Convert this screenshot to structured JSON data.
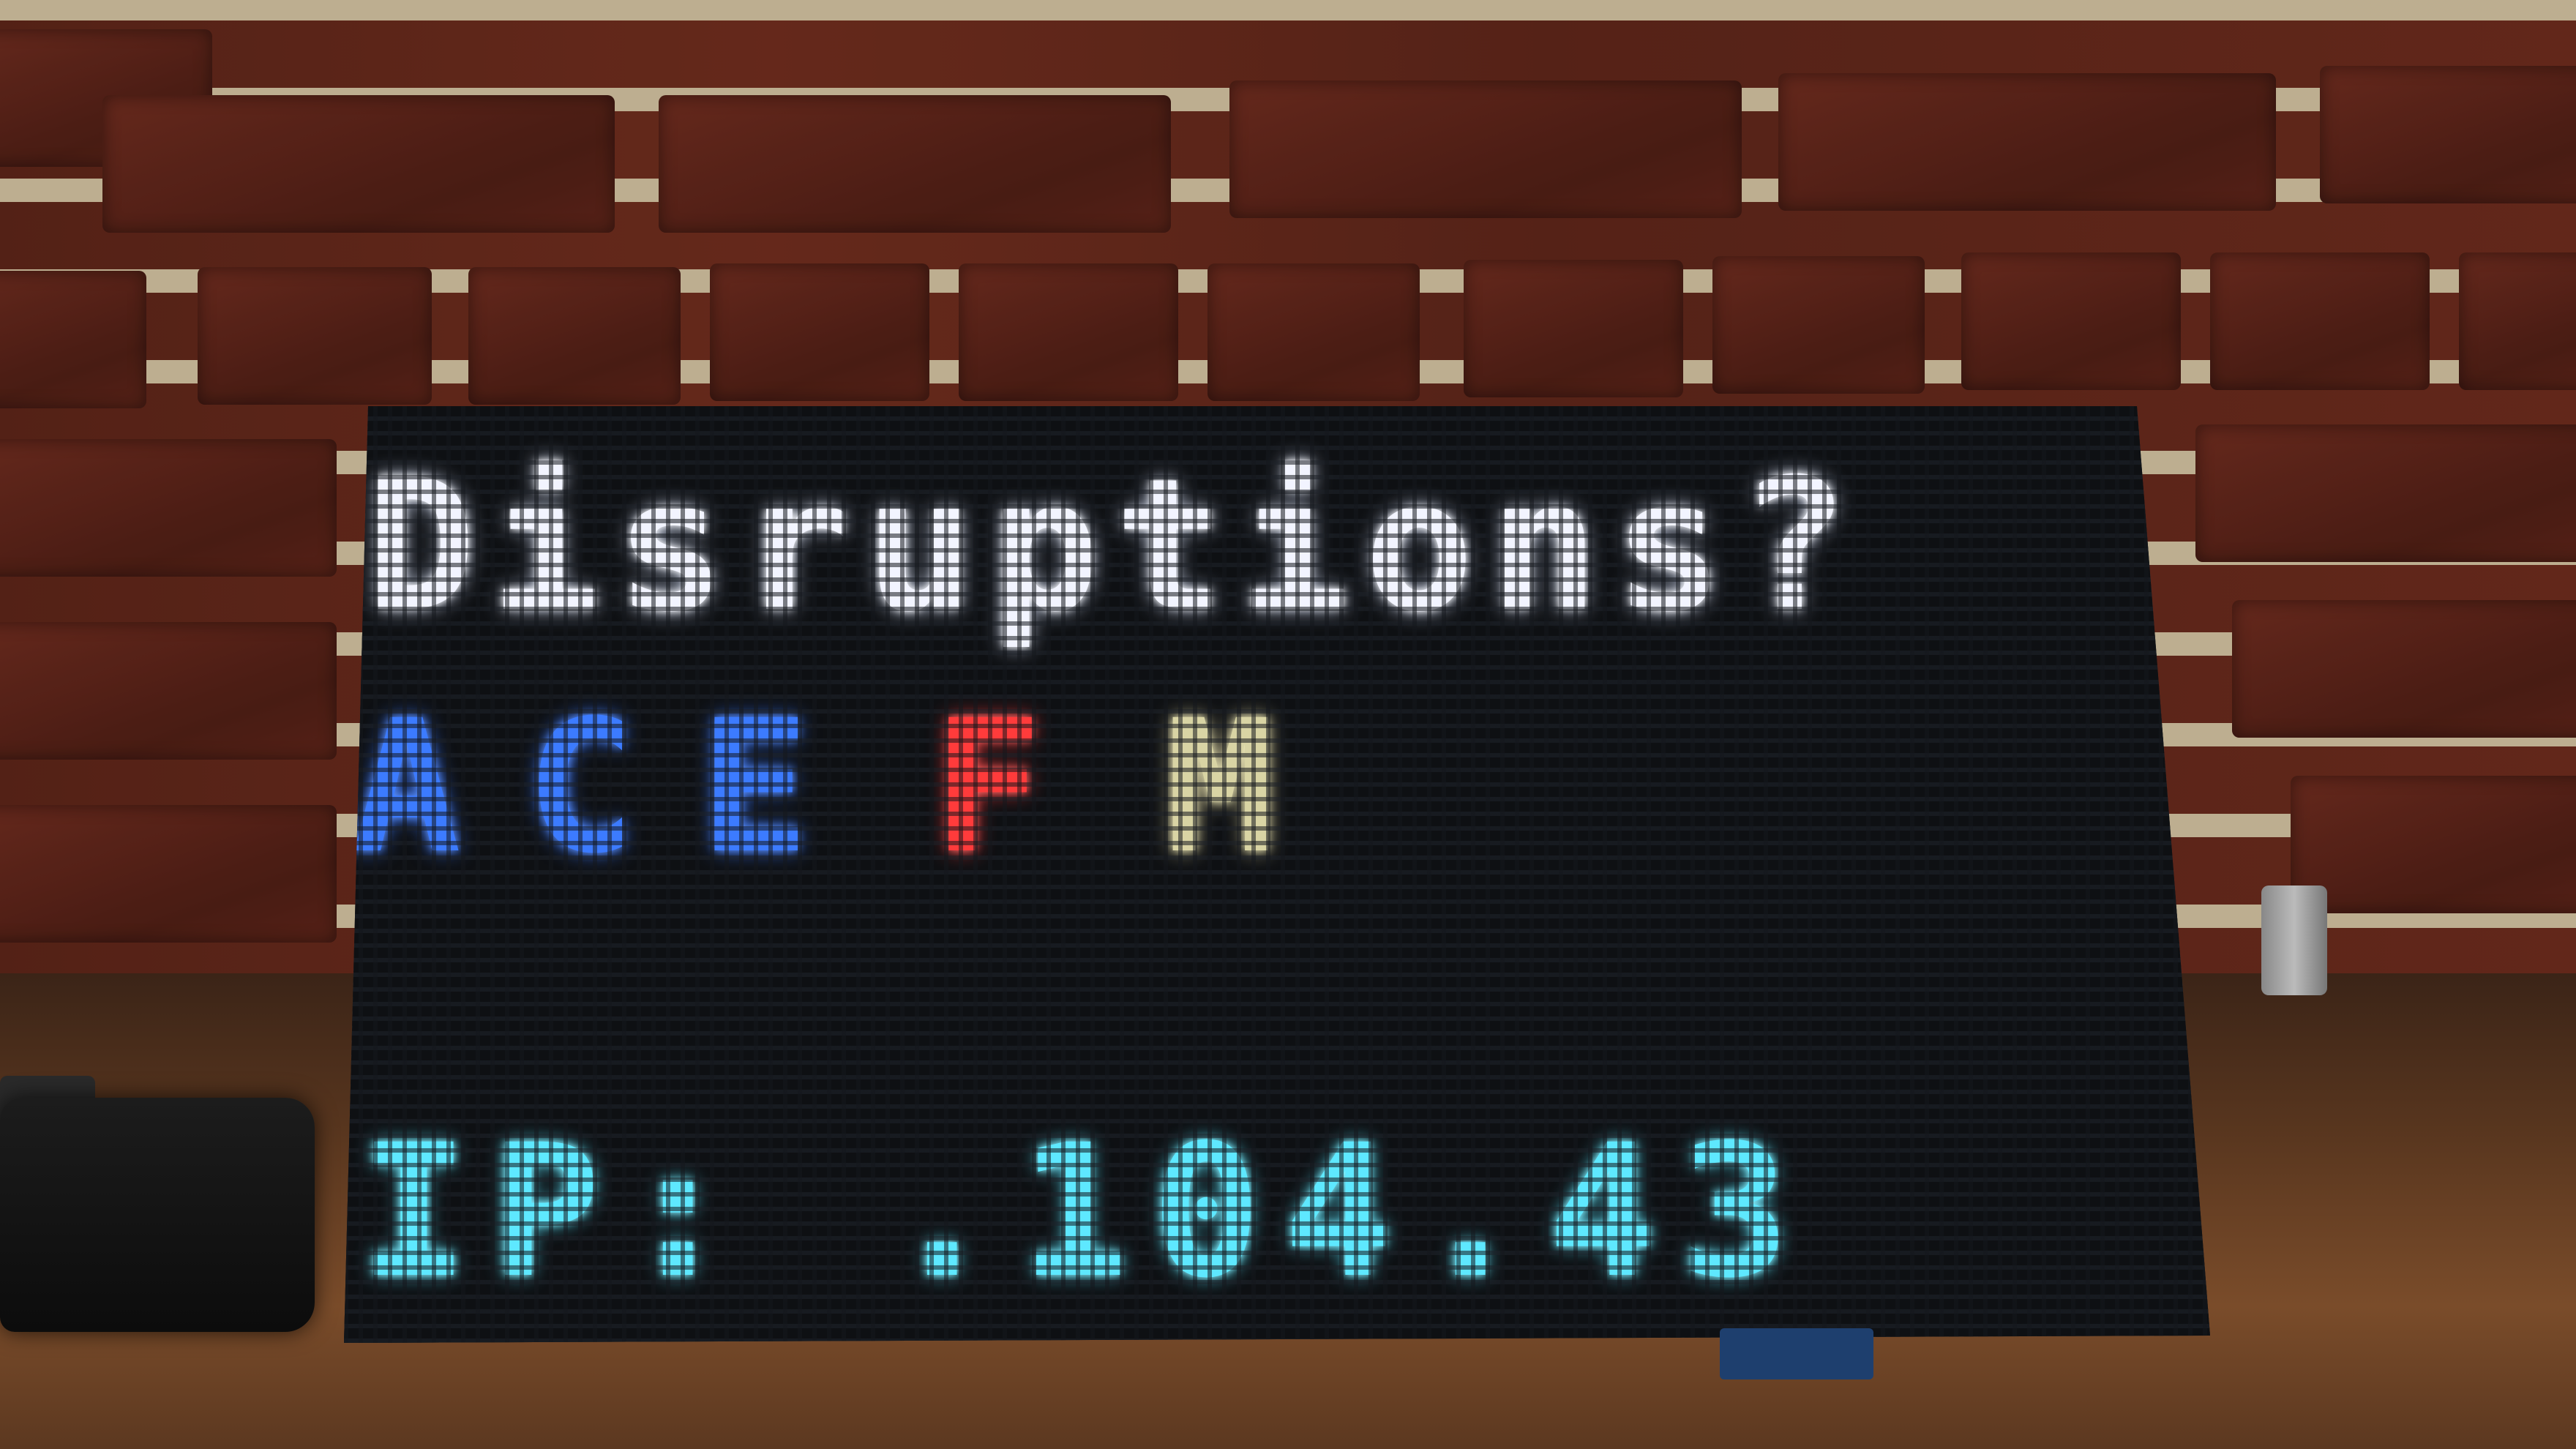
{
  "display": {
    "title": "Disruptions?",
    "lines": [
      {
        "label": "ACE",
        "color": "#3c7bff"
      },
      {
        "label": "F",
        "color": "#ff3b3b"
      },
      {
        "label": "M",
        "color": "#d9d4a4"
      }
    ],
    "ip_text": "IP: .104.43"
  },
  "colors": {
    "title_led": "#f2f4ff",
    "ip_led": "#5ee8ff",
    "brick": "#6d2b1e",
    "mortar": "#cdbd9c",
    "panel": "#14171c"
  }
}
